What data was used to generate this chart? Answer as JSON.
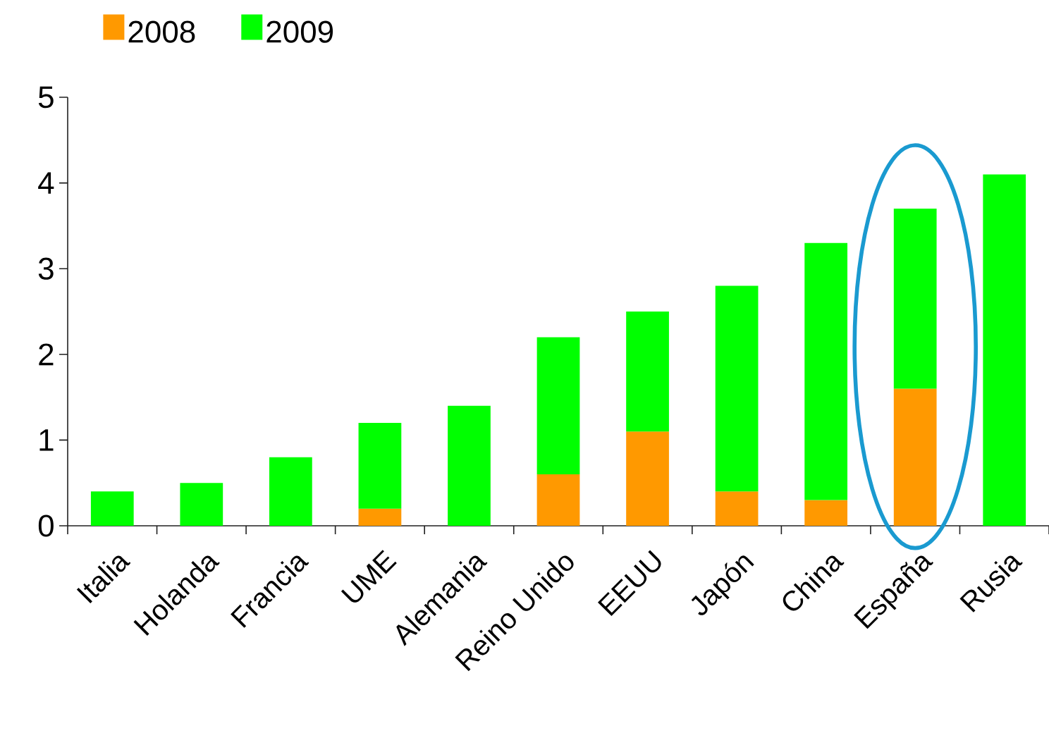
{
  "chart_data": {
    "type": "bar",
    "stacked": true,
    "categories": [
      "Italia",
      "Holanda",
      "Francia",
      "UME",
      "Alemania",
      "Reino Unido",
      "EEUU",
      "Japón",
      "China",
      "España",
      "Rusia"
    ],
    "series": [
      {
        "name": "2008",
        "color": "#ff9900",
        "values": [
          null,
          null,
          null,
          0.2,
          null,
          0.6,
          1.1,
          0.4,
          0.3,
          1.6,
          null
        ]
      },
      {
        "name": "2009",
        "color": "#00ff00",
        "values": [
          0.4,
          0.5,
          0.8,
          1.0,
          1.4,
          1.6,
          1.4,
          2.4,
          3.0,
          2.1,
          4.1
        ]
      }
    ],
    "ylim": [
      0,
      5
    ],
    "yticks": [
      0,
      1,
      2,
      3,
      4,
      5
    ],
    "legend": "top left"
  }
}
